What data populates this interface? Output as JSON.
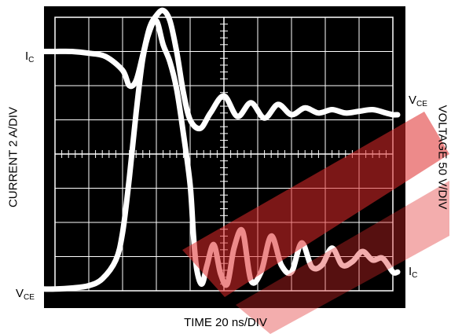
{
  "chart_data": {
    "type": "line",
    "xlabel": "TIME 20 ns/DIV",
    "ylabel_left": "CURRENT 2 A/DIV",
    "ylabel_right": "VOLTAGE 50 V/DIV",
    "grid": true,
    "divisions": {
      "x": 10,
      "y": 8
    },
    "xlim": [
      0,
      10
    ],
    "ylim": [
      0,
      8
    ],
    "series": [
      {
        "name": "I_C",
        "labels": {
          "start": "IC",
          "end": "IC"
        },
        "color": "#ffffff",
        "x": [
          0,
          0.5,
          1.0,
          1.4,
          1.8,
          2.0,
          2.2,
          2.4,
          2.6,
          2.8,
          3.0,
          3.2,
          3.4,
          3.6,
          3.8,
          4.0,
          4.1,
          4.2,
          4.35,
          4.5,
          4.7,
          4.9,
          5.1,
          5.3,
          5.55,
          5.8,
          6.1,
          6.4,
          6.7,
          7.0,
          7.3,
          7.6,
          7.9,
          8.2,
          8.5,
          8.8,
          9.1,
          9.4,
          9.7,
          10.0
        ],
        "y": [
          0.05,
          0.08,
          0.15,
          0.35,
          0.9,
          1.7,
          3.3,
          5.2,
          6.8,
          7.6,
          7.9,
          7.2,
          6.7,
          5.9,
          4.6,
          3.1,
          1.6,
          0.6,
          0.2,
          0.75,
          1.35,
          0.5,
          0.2,
          1.25,
          1.75,
          0.3,
          0.55,
          1.6,
          0.75,
          0.55,
          1.4,
          0.7,
          0.75,
          1.25,
          0.75,
          0.85,
          1.15,
          0.9,
          0.95,
          0.55
        ]
      },
      {
        "name": "V_CE",
        "labels": {
          "start": "VCE",
          "end": "VCE"
        },
        "color": "#ffffff",
        "x": [
          0,
          0.5,
          1.0,
          1.5,
          2.0,
          2.2,
          2.4,
          2.6,
          2.8,
          3.0,
          3.2,
          3.4,
          3.6,
          3.8,
          4.0,
          4.3,
          4.6,
          5.0,
          5.4,
          5.8,
          6.2,
          6.6,
          7.0,
          7.4,
          7.8,
          8.2,
          8.6,
          9.0,
          9.4,
          9.8,
          10.0
        ],
        "y": [
          7.0,
          7.0,
          6.95,
          6.85,
          6.45,
          6.0,
          6.15,
          6.9,
          7.7,
          8.05,
          8.2,
          7.9,
          7.0,
          5.8,
          5.0,
          4.75,
          5.2,
          5.7,
          5.1,
          5.5,
          5.05,
          5.45,
          5.15,
          5.35,
          5.2,
          5.3,
          5.2,
          5.25,
          5.3,
          5.2,
          5.15
        ]
      }
    ]
  },
  "labels": {
    "ic_main": "I",
    "ic_sub": "C",
    "vce_main": "V",
    "vce_sub": "CE"
  }
}
